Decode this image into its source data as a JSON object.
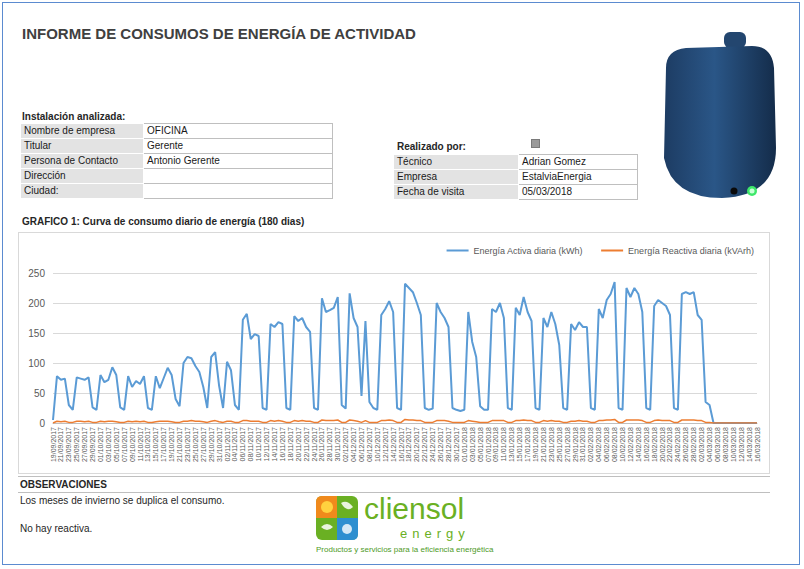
{
  "header": {
    "title": "INFORME DE CONSUMOS DE ENERGÍA DE ACTIVIDAD"
  },
  "installation": {
    "title": "Instalación analizada:",
    "rows": [
      {
        "label": "Nombre de empresa",
        "value": "OFICINA"
      },
      {
        "label": "Titular",
        "value": "Gerente"
      },
      {
        "label": "Persona de Contacto",
        "value": "Antonio Gerente"
      },
      {
        "label": "Dirección"
      },
      {
        "label": "Ciudad:"
      }
    ]
  },
  "performed_by": {
    "title": "Realizado por:",
    "rows": [
      {
        "label": "Técnico",
        "value": "Adrian Gomez"
      },
      {
        "label": "Empresa",
        "value": "EstalviaEnergia"
      },
      {
        "label": "Fecha de visita",
        "value": "05/03/2018"
      }
    ]
  },
  "chart_data": {
    "type": "line",
    "title": "GRAFICO 1: Curva de consumo diario de energía (180 dias)",
    "categories": [
      "19/09/2017",
      null,
      "21/09/2017",
      null,
      "23/09/2017",
      null,
      "25/09/2017",
      null,
      "27/09/2017",
      null,
      "29/09/2017",
      null,
      "01/10/2017",
      null,
      "03/10/2017",
      null,
      "05/10/2017",
      null,
      "07/10/2017",
      null,
      "09/10/2017",
      null,
      "11/10/2017",
      null,
      "13/10/2017",
      null,
      "15/10/2017",
      null,
      "17/10/2017",
      null,
      "19/10/2017",
      null,
      "21/10/2017",
      null,
      "23/10/2017",
      null,
      "25/10/2017",
      null,
      "27/10/2017",
      null,
      "29/10/2017",
      null,
      "31/10/2017",
      null,
      "02/11/2017",
      null,
      "04/11/2017",
      null,
      "06/11/2017",
      null,
      "08/11/2017",
      null,
      "10/11/2017",
      null,
      "12/11/2017",
      null,
      "14/11/2017",
      null,
      "16/11/2017",
      null,
      "18/11/2017",
      null,
      "20/11/2017",
      null,
      "22/11/2017",
      null,
      "24/11/2017",
      null,
      "26/11/2017",
      null,
      "28/11/2017",
      null,
      "30/11/2017",
      null,
      "02/12/2017",
      null,
      "04/12/2017",
      null,
      "06/12/2017",
      null,
      "08/12/2017",
      null,
      "10/12/2017",
      null,
      "12/12/2017",
      null,
      "14/12/2017",
      null,
      "16/12/2017",
      null,
      "18/12/2017",
      null,
      "20/12/2017",
      null,
      "22/12/2017",
      null,
      "24/12/2017",
      null,
      "26/12/2017",
      null,
      "28/12/2017",
      null,
      "30/12/2017",
      null,
      "01/01/2018",
      null,
      "03/01/2018",
      null,
      "05/01/2018",
      null,
      "07/01/2018",
      null,
      "09/01/2018",
      null,
      "11/01/2018",
      null,
      "13/01/2018",
      null,
      "15/01/2018",
      null,
      "17/01/2018",
      null,
      "19/01/2018",
      null,
      "21/01/2018",
      null,
      "23/01/2018",
      null,
      "25/01/2018",
      null,
      "27/01/2018",
      null,
      "29/01/2018",
      null,
      "31/01/2018",
      null,
      "02/02/2018",
      null,
      "04/02/2018",
      null,
      "06/02/2018",
      null,
      "08/02/2018",
      null,
      "10/02/2018",
      null,
      "12/02/2018",
      null,
      "14/02/2018",
      null,
      "16/02/2018",
      null,
      "18/02/2018",
      null,
      "20/02/2018",
      null,
      "22/02/2018",
      null,
      "24/02/2018",
      null,
      "26/02/2018",
      null,
      "28/02/2018",
      null,
      "02/03/2018",
      null,
      "04/03/2018",
      null,
      "06/03/2018",
      null,
      "08/03/2018",
      null,
      "10/03/2018",
      null,
      "12/03/2018",
      null,
      "14/03/2018",
      null,
      "16/03/2018"
    ],
    "series": [
      {
        "name": "Energía Activa diaria (kWh)",
        "color": "#5b9bd5",
        "values": [
          5,
          78,
          72,
          74,
          30,
          22,
          76,
          74,
          72,
          76,
          26,
          22,
          80,
          68,
          72,
          93,
          80,
          26,
          22,
          78,
          60,
          70,
          65,
          78,
          25,
          22,
          78,
          58,
          75,
          92,
          80,
          40,
          28,
          100,
          110,
          108,
          95,
          85,
          60,
          25,
          110,
          118,
          62,
          25,
          102,
          88,
          30,
          22,
          172,
          182,
          140,
          148,
          145,
          25,
          22,
          165,
          160,
          168,
          165,
          25,
          22,
          178,
          170,
          175,
          160,
          152,
          25,
          22,
          208,
          185,
          188,
          192,
          210,
          30,
          24,
          216,
          175,
          160,
          45,
          170,
          35,
          25,
          22,
          180,
          190,
          203,
          185,
          25,
          22,
          232,
          225,
          218,
          200,
          180,
          25,
          22,
          24,
          200,
          185,
          175,
          160,
          25,
          22,
          20,
          22,
          185,
          135,
          110,
          28,
          22,
          22,
          190,
          185,
          200,
          175,
          25,
          22,
          192,
          180,
          210,
          185,
          170,
          25,
          22,
          175,
          160,
          185,
          165,
          130,
          25,
          22,
          165,
          155,
          168,
          160,
          160,
          25,
          22,
          190,
          175,
          205,
          215,
          235,
          25,
          22,
          225,
          210,
          225,
          215,
          185,
          25,
          22,
          195,
          205,
          200,
          195,
          180,
          25,
          22,
          215,
          218,
          215,
          218,
          180,
          172,
          35,
          30,
          0,
          0,
          0,
          0,
          0,
          0,
          0,
          0,
          0,
          0,
          0,
          0
        ]
      },
      {
        "name": "Energía Reactiva diaria (kVArh)",
        "color": "#ed7d31",
        "values": [
          0,
          3,
          2,
          3,
          1,
          1,
          3,
          3,
          2,
          3,
          1,
          1,
          3,
          2,
          3,
          3,
          2,
          1,
          1,
          3,
          2,
          3,
          2,
          3,
          1,
          1,
          2,
          3,
          3,
          3,
          2,
          1,
          1,
          3,
          3,
          4,
          3,
          3,
          2,
          1,
          3,
          4,
          2,
          1,
          3,
          3,
          1,
          1,
          4,
          4,
          3,
          3,
          3,
          1,
          1,
          4,
          3,
          4,
          3,
          1,
          1,
          4,
          3,
          4,
          3,
          3,
          1,
          1,
          5,
          4,
          4,
          4,
          5,
          1,
          1,
          5,
          4,
          3,
          1,
          4,
          1,
          1,
          1,
          4,
          4,
          5,
          4,
          1,
          1,
          6,
          5,
          5,
          4,
          4,
          1,
          1,
          1,
          4,
          4,
          4,
          3,
          1,
          1,
          1,
          1,
          4,
          3,
          2,
          1,
          1,
          1,
          4,
          4,
          4,
          4,
          1,
          1,
          4,
          4,
          5,
          4,
          4,
          1,
          1,
          4,
          3,
          4,
          3,
          3,
          1,
          1,
          3,
          3,
          4,
          3,
          3,
          1,
          1,
          4,
          4,
          5,
          5,
          6,
          1,
          1,
          5,
          5,
          5,
          5,
          4,
          1,
          1,
          4,
          5,
          4,
          4,
          4,
          1,
          1,
          5,
          5,
          5,
          5,
          4,
          4,
          1,
          1,
          0,
          0,
          0,
          0,
          0,
          0,
          0,
          0,
          0,
          0,
          0,
          0
        ]
      }
    ],
    "ylim": [
      0,
      250
    ],
    "yticks": [
      0,
      50,
      100,
      150,
      200,
      250
    ],
    "grid": true,
    "legend": "top-right"
  },
  "observations": {
    "title": "OBSERVACIONES",
    "lines": [
      "Los meses de invierno se duplica el consumo.",
      "No hay reactiva."
    ]
  },
  "logo": {
    "name": "cliensol",
    "subname": "energy",
    "tagline": "Productos y servicios para la eficiencia energética"
  }
}
